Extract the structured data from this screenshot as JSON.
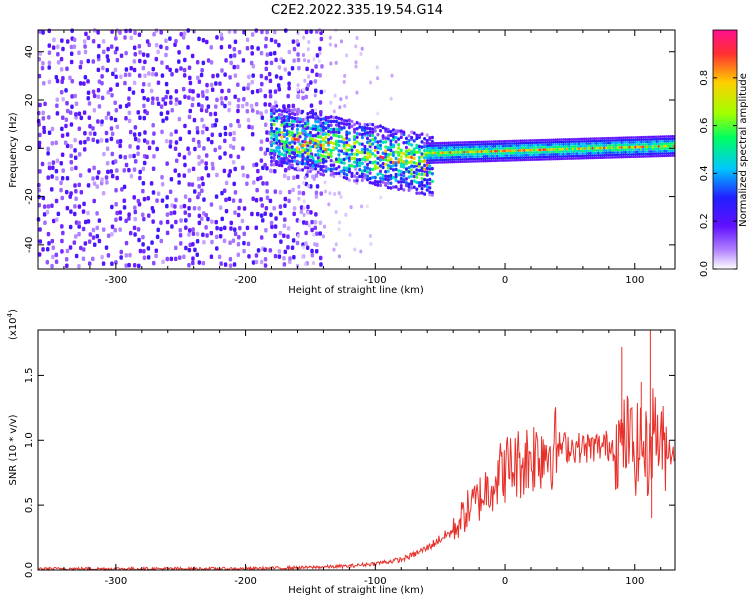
{
  "title": "C2E2.2022.335.19.54.G14",
  "chart_data": [
    {
      "type": "heatmap",
      "xlabel": "Height of straight line (km)",
      "ylabel": "Frequency (Hz)",
      "xlim": [
        -360,
        131
      ],
      "ylim": [
        -50,
        49
      ],
      "xticks": [
        -300,
        -200,
        -100,
        0,
        100
      ],
      "yticks": [
        -40,
        -20,
        0,
        20,
        40
      ],
      "xtick_labels": [
        "-300",
        "-200",
        "-100",
        "0",
        "100"
      ],
      "ytick_labels": [
        "-40",
        "-20",
        "0",
        "20",
        "40"
      ],
      "colorbar": {
        "label": "Normalized spectral amplitude",
        "range": [
          0,
          1
        ],
        "ticks": [
          0.0,
          0.2,
          0.4,
          0.6,
          0.8
        ],
        "tick_labels": [
          "0.0",
          "0.2",
          "0.4",
          "0.6",
          "0.8"
        ],
        "colors": [
          "#ffffff",
          "#a060ff",
          "#6010ff",
          "#2020ff",
          "#00c8ff",
          "#00ff60",
          "#a0ff00",
          "#ffd000",
          "#ff3030",
          "#ff1090"
        ]
      },
      "regions": [
        {
          "desc": "broadband noise",
          "x": [
            -360,
            -140
          ],
          "freq": [
            -50,
            49
          ],
          "amplitude": 0.2
        },
        {
          "desc": "sparse noise",
          "x": [
            -160,
            -80
          ],
          "freq": [
            -50,
            49
          ],
          "amplitude": 0.05
        },
        {
          "desc": "signal onset",
          "x": [
            -180,
            -55
          ],
          "freq_center": [
            5,
            -8
          ],
          "bandwidth": 12,
          "amplitude": 0.55
        },
        {
          "desc": "steady tone",
          "x": [
            -60,
            131
          ],
          "freq_center": [
            -2,
            1
          ],
          "bandwidth": 3,
          "amplitude": 0.95
        }
      ]
    },
    {
      "type": "line",
      "xlabel": "Height of straight line (km)",
      "ylabel": "SNR (10 * v/v)",
      "y_multiplier": "(x10",
      "y_multiplier_exp": "4",
      "y_multiplier_close": ")",
      "xlim": [
        -360,
        131
      ],
      "ylim": [
        0,
        1.85
      ],
      "xticks": [
        -300,
        -200,
        -100,
        0,
        100
      ],
      "yticks": [
        0.0,
        0.5,
        1.0,
        1.5
      ],
      "xtick_labels": [
        "-300",
        "-200",
        "-100",
        "0",
        "100"
      ],
      "ytick_labels": [
        "0.0",
        "0.5",
        "1.0",
        "1.5"
      ],
      "color": "#e8302a",
      "series": [
        {
          "x": [
            -360,
            -300,
            -200,
            -150,
            -120,
            -100,
            -80,
            -70,
            -60,
            -50,
            -40,
            -30,
            -20,
            -10,
            0,
            10,
            20,
            30,
            40,
            50,
            60,
            70,
            80,
            90,
            95,
            100,
            105,
            110,
            115,
            120,
            131
          ],
          "values": [
            0.01,
            0.01,
            0.01,
            0.02,
            0.03,
            0.05,
            0.08,
            0.12,
            0.17,
            0.24,
            0.3,
            0.45,
            0.55,
            0.68,
            0.78,
            0.82,
            0.88,
            0.93,
            0.95,
            0.95,
            0.94,
            0.95,
            0.96,
            0.96,
            1.05,
            0.9,
            1.0,
            0.85,
            1.15,
            0.95,
            0.92
          ]
        }
      ],
      "spikes": [
        {
          "x": 90,
          "value": 1.72
        },
        {
          "x": 105,
          "value": 1.45
        },
        {
          "x": 112,
          "value": 1.85
        },
        {
          "x": 113,
          "value": 0.4
        }
      ]
    }
  ]
}
